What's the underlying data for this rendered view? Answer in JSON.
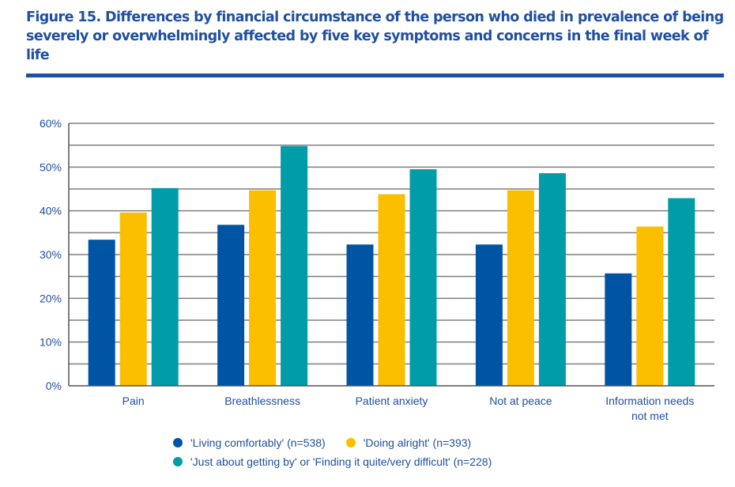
{
  "figure": {
    "title": "Figure 15. Differences by financial circumstance of the person who died in prevalence of being severely or overwhelmingly affected by five key symptoms and concerns in the final week of life"
  },
  "chart_data": {
    "type": "bar",
    "title": "Figure 15. Differences by financial circumstance of the person who died in prevalence of being severely or overwhelmingly affected by five key symptoms and concerns in the final week of life",
    "xlabel": "",
    "ylabel": "",
    "categories": [
      "Pain",
      "Breathlessness",
      "Patient anxiety",
      "Not at peace",
      "Information needs not met"
    ],
    "category_lines": [
      [
        "Pain"
      ],
      [
        "Breathlessness"
      ],
      [
        "Patient anxiety"
      ],
      [
        "Not at peace"
      ],
      [
        "Information needs",
        "not met"
      ]
    ],
    "series": [
      {
        "name": "'Living comfortably' (n=538)",
        "color": "#0054a4",
        "values": [
          33.4,
          36.8,
          32.3,
          32.3,
          25.7
        ]
      },
      {
        "name": "'Doing alright' (n=393)",
        "color": "#fbbf00",
        "values": [
          39.6,
          44.7,
          43.8,
          44.7,
          36.4
        ]
      },
      {
        "name": "'Just about getting by' or 'Finding it quite/very difficult' (n=228)",
        "color": "#009ca8",
        "values": [
          45.2,
          54.8,
          49.5,
          48.6,
          42.9
        ]
      }
    ],
    "ylim": [
      0,
      60
    ],
    "yticks": [
      0,
      10,
      20,
      30,
      40,
      50,
      60
    ],
    "ytick_labels": [
      "0%",
      "10%",
      "20%",
      "30%",
      "40%",
      "50%",
      "60%"
    ],
    "gridlines_every": 5,
    "grid": true,
    "legend_position": "bottom"
  }
}
